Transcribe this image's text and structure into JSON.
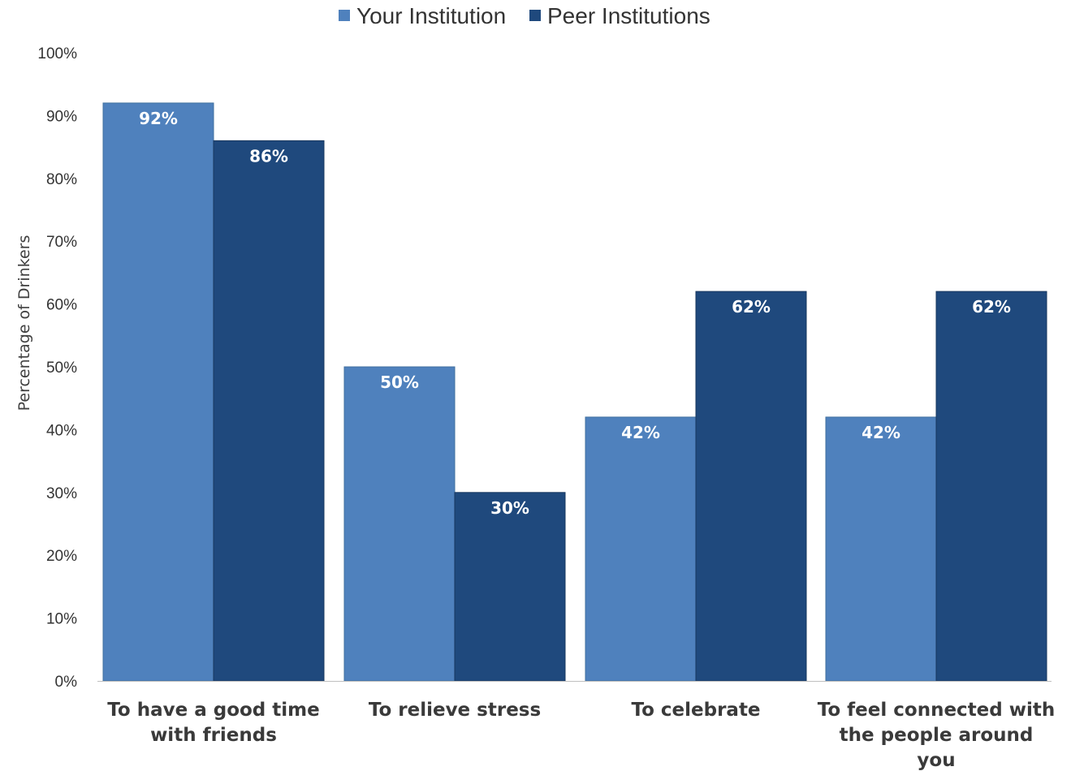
{
  "chart_data": {
    "type": "bar",
    "categories": [
      [
        "To have a good time",
        "with friends"
      ],
      [
        "To relieve stress"
      ],
      [
        "To celebrate"
      ],
      [
        "To feel connected with",
        "the people around",
        "you"
      ]
    ],
    "series": [
      {
        "name": "Your Institution",
        "color": "#4f81bd",
        "values": [
          92,
          50,
          42,
          42
        ],
        "labels": [
          "92%",
          "50%",
          "42%",
          "42%"
        ]
      },
      {
        "name": "Peer Institutions",
        "color": "#1f497d",
        "values": [
          86,
          30,
          62,
          62
        ],
        "labels": [
          "86%",
          "30%",
          "62%",
          "62%"
        ]
      }
    ],
    "ylabel": "Percentage of Drinkers",
    "ylim": [
      0,
      100
    ],
    "yticks": [
      "0%",
      "10%",
      "20%",
      "30%",
      "40%",
      "50%",
      "60%",
      "70%",
      "80%",
      "90%",
      "100%"
    ],
    "legend_position": "top",
    "grid": false
  }
}
